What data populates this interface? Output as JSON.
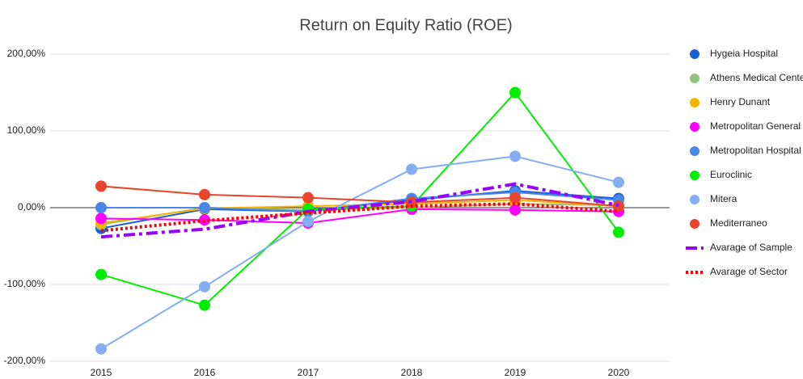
{
  "chart_data": {
    "type": "line",
    "title": "Return on Equity Ratio (ROE)",
    "categories": [
      "2015",
      "2016",
      "2017",
      "2018",
      "2019",
      "2020"
    ],
    "ylim": [
      -200,
      200
    ],
    "yticks": [
      {
        "value": -200,
        "label": "-200,00%"
      },
      {
        "value": -100,
        "label": "-100,00%"
      },
      {
        "value": 0,
        "label": "0,00%"
      },
      {
        "value": 100,
        "label": "100,00%"
      },
      {
        "value": 200,
        "label": "200,00%"
      }
    ],
    "grid": true,
    "legend": "right",
    "series": [
      {
        "name": "Hygeia Hospital",
        "color": "#1a5fd6",
        "values": [
          -27,
          -2,
          -5,
          10,
          22,
          12
        ]
      },
      {
        "name": "Athens Medical Center",
        "color": "#93c47d",
        "values": [
          -22,
          0,
          -3,
          0,
          5,
          3
        ]
      },
      {
        "name": "Henry Dunant",
        "color": "#f6b400",
        "values": [
          -20,
          -1,
          2,
          5,
          10,
          2
        ]
      },
      {
        "name": "Metropolitan General",
        "color": "#ff00ff",
        "values": [
          -14,
          -16,
          -20,
          -2,
          -3,
          -5
        ]
      },
      {
        "name": "Metropolitan Hospital",
        "color": "#4a86e8",
        "values": [
          0,
          0,
          -5,
          12,
          20,
          10
        ]
      },
      {
        "name": "Euroclinic",
        "color": "#00ee00",
        "values": [
          -87,
          -127,
          -2,
          2,
          150,
          -32
        ]
      },
      {
        "name": "Mitera",
        "color": "#84aef0",
        "values": [
          -184,
          -103,
          -18,
          50,
          67,
          33
        ]
      },
      {
        "name": "Mediterraneo",
        "color": "#e8452c",
        "values": [
          28,
          17,
          13,
          7,
          13,
          2
        ]
      },
      {
        "name": "Avarage of Sample",
        "color": "#9900ff",
        "style": "dashdot",
        "values": [
          -38,
          -28,
          -5,
          8,
          31,
          3
        ]
      },
      {
        "name": "Avarage of Sector",
        "color": "#ff0000",
        "style": "dotted",
        "values": [
          -30,
          -17,
          -7,
          2,
          5,
          -5
        ]
      }
    ]
  }
}
